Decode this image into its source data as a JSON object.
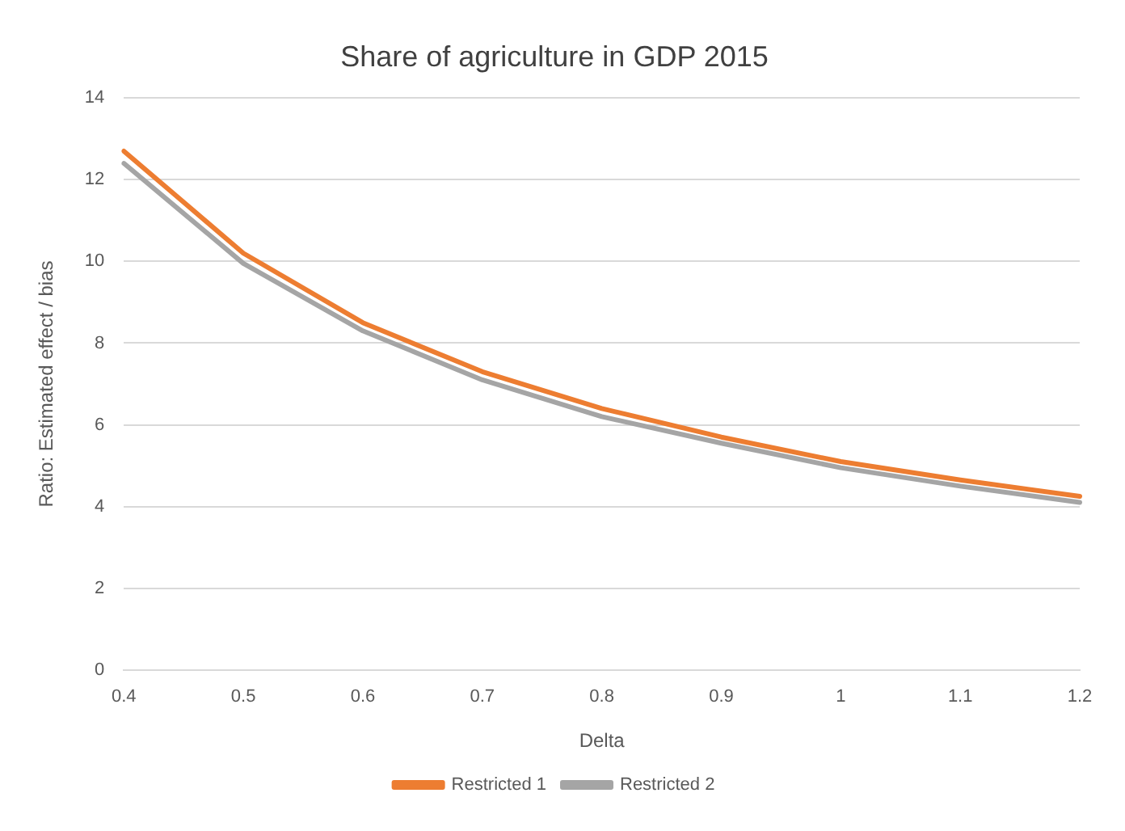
{
  "chart_data": {
    "type": "line",
    "title": "Share of agriculture in GDP 2015",
    "xlabel": "Delta",
    "ylabel": "Ratio: Estimated effect / bias",
    "categories": [
      "0.4",
      "0.5",
      "0.6",
      "0.7",
      "0.8",
      "0.9",
      "1",
      "1.1",
      "1.2"
    ],
    "series": [
      {
        "name": "Restricted 1",
        "color": "#ed7d31",
        "values": [
          12.7,
          10.2,
          8.5,
          7.3,
          6.4,
          5.7,
          5.1,
          4.65,
          4.25
        ]
      },
      {
        "name": "Restricted 2",
        "color": "#a5a5a5",
        "values": [
          12.4,
          9.95,
          8.3,
          7.1,
          6.2,
          5.55,
          4.95,
          4.5,
          4.1
        ]
      }
    ],
    "ylim": [
      0,
      14
    ],
    "yticks": [
      0,
      2,
      4,
      6,
      8,
      10,
      12,
      14
    ],
    "grid": "y",
    "legend": "bottom",
    "marker": "none",
    "line_style": "solid"
  }
}
